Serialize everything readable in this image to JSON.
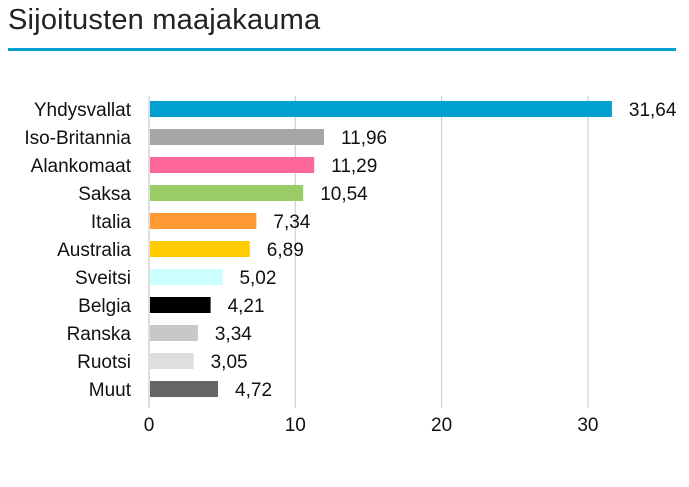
{
  "title": "Sijoitusten maajakauma",
  "colors": {
    "accent": "#00a0d0"
  },
  "chart_data": {
    "type": "bar",
    "orientation": "horizontal",
    "categories": [
      "Yhdysvallat",
      "Iso-Britannia",
      "Alankomaat",
      "Saksa",
      "Italia",
      "Australia",
      "Sveitsi",
      "Belgia",
      "Ranska",
      "Ruotsi",
      "Muut"
    ],
    "values": [
      31.64,
      11.96,
      11.29,
      10.54,
      7.34,
      6.89,
      5.02,
      4.21,
      3.34,
      3.05,
      4.72
    ],
    "value_labels": [
      "31,64",
      "11,96",
      "11,29",
      "10,54",
      "7,34",
      "6,89",
      "5,02",
      "4,21",
      "3,34",
      "3,05",
      "4,72"
    ],
    "colors": [
      "#00a0d0",
      "#a6a6a6",
      "#ff6699",
      "#99cc66",
      "#ff9933",
      "#ffcc00",
      "#ccffff",
      "#000000",
      "#c8c8c8",
      "#dedede",
      "#666666"
    ],
    "xticks": [
      0,
      10,
      20,
      30
    ],
    "xlim": [
      0,
      36
    ],
    "grid": true,
    "legend": "none",
    "xlabel": "",
    "ylabel": ""
  }
}
